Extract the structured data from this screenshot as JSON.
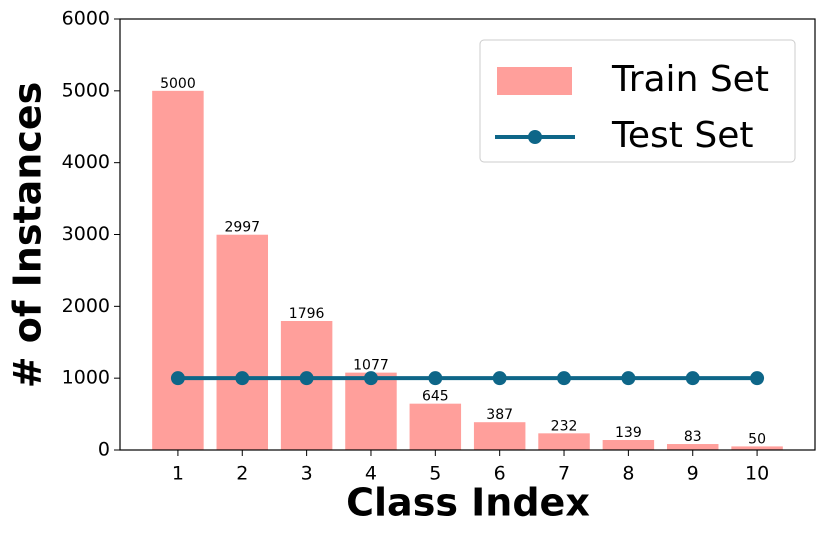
{
  "chart_data": {
    "type": "bar",
    "x_label": "Class Index",
    "y_label": "# of Instances",
    "categories": [
      1,
      2,
      3,
      4,
      5,
      6,
      7,
      8,
      9,
      10
    ],
    "xlim": [
      0.1,
      10.9
    ],
    "ylim": [
      0,
      6000
    ],
    "yticks": [
      0,
      1000,
      2000,
      3000,
      4000,
      5000,
      6000
    ],
    "legend": "upper right",
    "series": [
      {
        "name": "Train Set",
        "type": "bar",
        "color": "#ff9f9b",
        "values": [
          5000,
          2997,
          1796,
          1077,
          645,
          387,
          232,
          139,
          83,
          50
        ]
      },
      {
        "name": "Test Set",
        "type": "line",
        "color": "#0e6688",
        "values": [
          1000,
          1000,
          1000,
          1000,
          1000,
          1000,
          1000,
          1000,
          1000,
          1000
        ]
      }
    ]
  }
}
